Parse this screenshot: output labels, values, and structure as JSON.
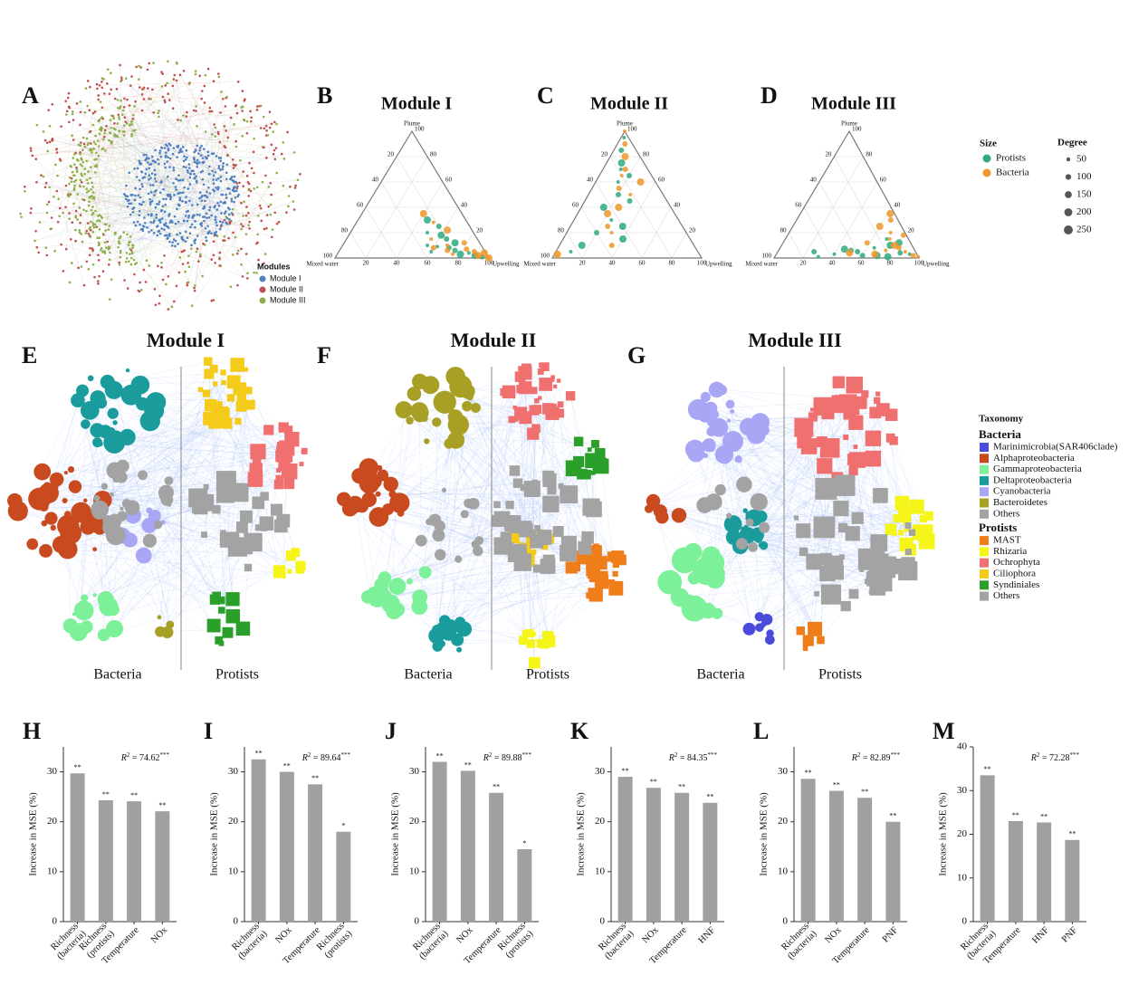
{
  "chart_data": [
    {
      "type": "network-overview",
      "label": "A",
      "legend_title": "Modules",
      "series": [
        {
          "name": "Module I",
          "color": "#4f7fbf"
        },
        {
          "name": "Module II",
          "color": "#c0504d"
        },
        {
          "name": "Module III",
          "color": "#8db04a"
        }
      ]
    },
    {
      "type": "ternary",
      "label": "B",
      "title": "Module I",
      "top_label": "Plume",
      "left_label": "Mixed water",
      "right_label": "Upwelling",
      "ticks": [
        20,
        40,
        60,
        80,
        100
      ],
      "series": [
        {
          "name": "Protists",
          "color": "#2eaa7e",
          "plume": [
            5,
            8,
            3,
            10,
            15,
            2,
            20,
            6,
            12,
            4,
            25,
            30,
            9,
            1,
            18
          ],
          "upwelling": [
            60,
            70,
            80,
            55,
            65,
            90,
            50,
            75,
            72,
            85,
            55,
            45,
            62,
            95,
            60
          ]
        },
        {
          "name": "Bacteria",
          "color": "#f0962a",
          "plume": [
            3,
            7,
            2,
            10,
            5,
            35,
            28,
            12,
            4,
            15,
            8,
            22,
            1,
            6,
            0
          ],
          "upwelling": [
            75,
            82,
            92,
            68,
            88,
            40,
            50,
            78,
            95,
            55,
            60,
            62,
            98,
            70,
            100
          ]
        }
      ]
    },
    {
      "type": "ternary",
      "label": "C",
      "title": "Module II",
      "top_label": "Plume",
      "left_label": "Mixed water",
      "right_label": "Upwelling",
      "ticks": [
        20,
        40,
        60,
        80,
        100
      ],
      "series": [
        {
          "name": "Protists",
          "color": "#2eaa7e",
          "plume": [
            95,
            85,
            75,
            60,
            50,
            40,
            30,
            20,
            10,
            70,
            45,
            25,
            5,
            65,
            15
          ],
          "upwelling": [
            2,
            5,
            10,
            15,
            20,
            15,
            25,
            20,
            15,
            12,
            30,
            35,
            10,
            20,
            40
          ]
        },
        {
          "name": "Bacteria",
          "color": "#f0962a",
          "plume": [
            100,
            90,
            80,
            65,
            55,
            35,
            50,
            25,
            3,
            1,
            70,
            40,
            20,
            10,
            60
          ],
          "upwelling": [
            0,
            5,
            10,
            15,
            18,
            20,
            28,
            25,
            2,
            3,
            15,
            25,
            30,
            35,
            30
          ]
        }
      ]
    },
    {
      "type": "ternary",
      "label": "D",
      "title": "Module III",
      "top_label": "Plume",
      "left_label": "Mixed water",
      "right_label": "Upwelling",
      "ticks": [
        20,
        40,
        60,
        80,
        100
      ],
      "series": [
        {
          "name": "Protists",
          "color": "#2eaa7e",
          "plume": [
            3,
            5,
            2,
            8,
            4,
            10,
            1,
            6,
            12,
            3,
            2,
            7,
            15,
            5,
            1
          ],
          "upwelling": [
            40,
            55,
            70,
            65,
            85,
            75,
            30,
            50,
            80,
            92,
            60,
            45,
            70,
            25,
            78
          ]
        },
        {
          "name": "Bacteria",
          "color": "#f0962a",
          "plume": [
            20,
            30,
            10,
            5,
            2,
            25,
            15,
            8,
            3,
            1,
            12,
            35,
            6,
            18,
            4
          ],
          "upwelling": [
            70,
            65,
            78,
            88,
            95,
            60,
            72,
            82,
            68,
            99,
            58,
            62,
            74,
            80,
            50
          ]
        }
      ]
    },
    {
      "type": "network",
      "label": "E",
      "title": "Module I",
      "left_label": "Bacteria",
      "right_label": "Protists"
    },
    {
      "type": "network",
      "label": "F",
      "title": "Module II",
      "left_label": "Bacteria",
      "right_label": "Protists"
    },
    {
      "type": "network",
      "label": "G",
      "title": "Module III",
      "left_label": "Bacteria",
      "right_label": "Protists"
    },
    {
      "type": "bar",
      "label": "H",
      "ylabel": "Increase in MSE (%)",
      "color": "#a0a0a0",
      "categories": [
        "Richness (bacteria)",
        "Richness (protists)",
        "Temperature",
        "NOx"
      ],
      "values": [
        29.7,
        24.3,
        24.1,
        22.1
      ],
      "significance": [
        "**",
        "**",
        "**",
        "**"
      ],
      "r2": {
        "symbol": "R",
        "power": "2",
        "text": " = 74.62",
        "stars": "***"
      },
      "ylim": [
        0,
        35
      ],
      "yticks": [
        0,
        10,
        20,
        30
      ]
    },
    {
      "type": "bar",
      "label": "I",
      "ylabel": "Increase in MSE (%)",
      "color": "#a0a0a0",
      "categories": [
        "Richness (bacteria)",
        "NOx",
        "Temperature",
        "Richness (protists)"
      ],
      "values": [
        32.5,
        30,
        27.5,
        18
      ],
      "significance": [
        "**",
        "**",
        "**",
        "*"
      ],
      "r2": {
        "symbol": "R",
        "power": "2",
        "text": " = 89.64",
        "stars": "***"
      },
      "ylim": [
        0,
        35
      ],
      "yticks": [
        0,
        10,
        20,
        30
      ]
    },
    {
      "type": "bar",
      "label": "J",
      "ylabel": "Increase in MSE (%)",
      "color": "#a0a0a0",
      "categories": [
        "Richness (bacteria)",
        "NOx",
        "Temperature",
        "Richness (protists)"
      ],
      "values": [
        32,
        30.2,
        25.8,
        14.5
      ],
      "significance": [
        "**",
        "**",
        "**",
        "*"
      ],
      "r2": {
        "symbol": "R",
        "power": "2",
        "text": " = 89.88",
        "stars": "***"
      },
      "ylim": [
        0,
        35
      ],
      "yticks": [
        0,
        10,
        20,
        30
      ]
    },
    {
      "type": "bar",
      "label": "K",
      "ylabel": "Increase in MSE (%)",
      "color": "#a0a0a0",
      "categories": [
        "Richness (bacteria)",
        "NOx",
        "Temperature",
        "HNF"
      ],
      "values": [
        29,
        26.8,
        25.8,
        23.8
      ],
      "significance": [
        "**",
        "**",
        "**",
        "**"
      ],
      "r2": {
        "symbol": "R",
        "power": "2",
        "text": " = 84.35",
        "stars": "***"
      },
      "ylim": [
        0,
        35
      ],
      "yticks": [
        0,
        10,
        20,
        30
      ]
    },
    {
      "type": "bar",
      "label": "L",
      "ylabel": "Increase in MSE (%)",
      "color": "#a0a0a0",
      "categories": [
        "Richness (bacteria)",
        "NOx",
        "Temperature",
        "PNF"
      ],
      "values": [
        28.6,
        26.2,
        24.8,
        20
      ],
      "significance": [
        "**",
        "**",
        "**",
        "**"
      ],
      "r2": {
        "symbol": "R",
        "power": "2",
        "text": " = 82.89",
        "stars": "***"
      },
      "ylim": [
        0,
        35
      ],
      "yticks": [
        0,
        10,
        20,
        30
      ]
    },
    {
      "type": "bar",
      "label": "M",
      "ylabel": "Increase in MSE (%)",
      "color": "#a0a0a0",
      "categories": [
        "Richness (bacteria)",
        "Temperature",
        "HNF",
        "PNF"
      ],
      "values": [
        33.5,
        23,
        22.7,
        18.7
      ],
      "significance": [
        "**",
        "**",
        "**",
        "**"
      ],
      "r2": {
        "symbol": "R",
        "power": "2",
        "text": " = 72.28",
        "stars": "***"
      },
      "ylim": [
        0,
        40
      ],
      "yticks": [
        0,
        10,
        20,
        30,
        40
      ]
    }
  ],
  "ternary_legend": {
    "color_title": "Size",
    "size_title": "Degree",
    "sizes": [
      50,
      100,
      150,
      200,
      250
    ]
  },
  "taxonomy_legend": {
    "title": "Taxonomy",
    "groups": [
      {
        "name": "Bacteria",
        "items": [
          {
            "name": "Marinimicrobia(SAR406clade)",
            "color": "#4b4bdb"
          },
          {
            "name": "Alphaproteobacteria",
            "color": "#c84a1e"
          },
          {
            "name": "Gammaproteobacteria",
            "color": "#7df09a"
          },
          {
            "name": "Deltaproteobacteria",
            "color": "#1a9c9c"
          },
          {
            "name": "Cyanobacteria",
            "color": "#a9a6f5"
          },
          {
            "name": "Bacteroidetes",
            "color": "#a8a025"
          },
          {
            "name": "Others",
            "color": "#a3a3a3"
          }
        ]
      },
      {
        "name": "Protists",
        "items": [
          {
            "name": "MAST",
            "color": "#ef7d1a"
          },
          {
            "name": "Rhizaria",
            "color": "#f5f51a"
          },
          {
            "name": "Ochrophyta",
            "color": "#f07070"
          },
          {
            "name": "Ciliophora",
            "color": "#f5cb1a"
          },
          {
            "name": "Syndiniales",
            "color": "#2aa02a"
          },
          {
            "name": "Others",
            "color": "#a3a3a3"
          }
        ]
      }
    ]
  }
}
